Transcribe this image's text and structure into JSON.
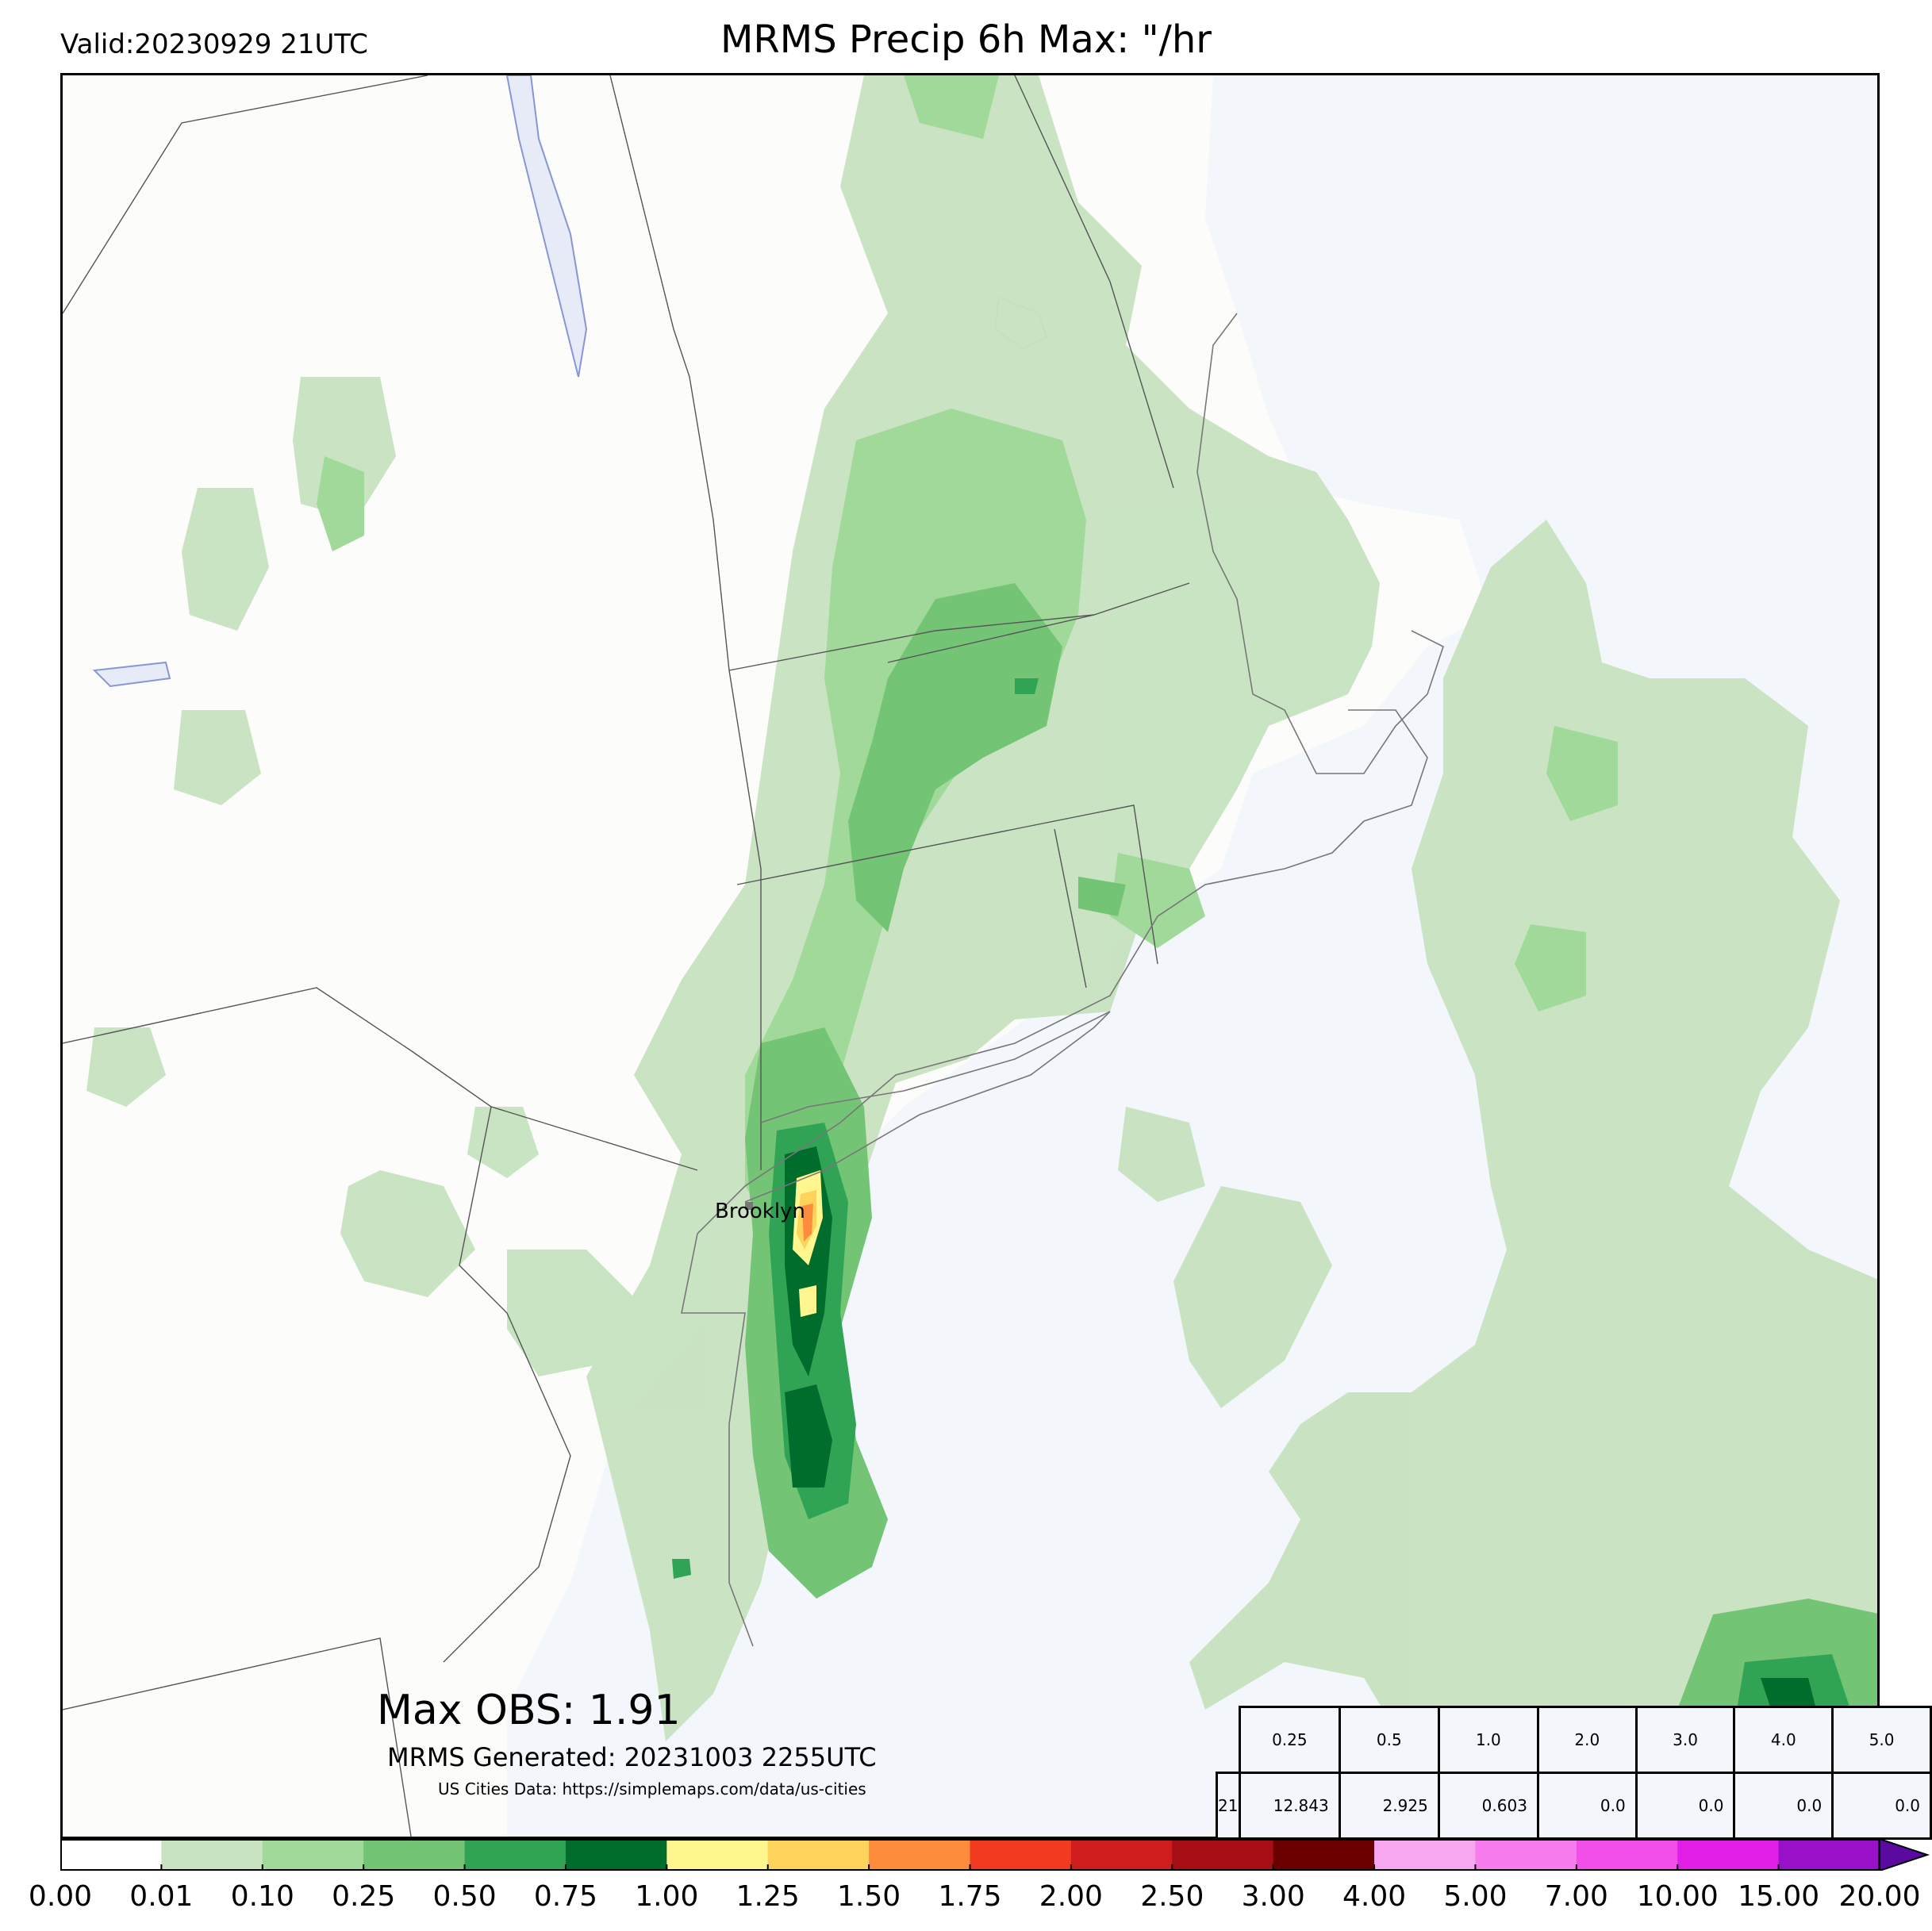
{
  "header": {
    "valid_text": "Valid:20230929 21UTC",
    "title": "MRMS Precip 6h Max: \"/hr"
  },
  "map": {
    "city_label": "Brooklyn",
    "colors": {
      "land": "#fcfcfb",
      "ocean": "#f3f6fb",
      "lake": "#e6ebf7",
      "border": "#555555"
    }
  },
  "annotations": {
    "max_obs": "Max OBS: 1.91",
    "generated": "MRMS Generated: 20231003 2255UTC",
    "source": "US Cities Data: https://simplemaps.com/data/us-cities"
  },
  "stats_table": {
    "row_label": "21",
    "thresholds": [
      "0.25",
      "0.5",
      "1.0",
      "2.0",
      "3.0",
      "4.0",
      "5.0"
    ],
    "values": [
      "12.843",
      "2.925",
      "0.603",
      "0.0",
      "0.0",
      "0.0",
      "0.0"
    ]
  },
  "colorbar": {
    "labels": [
      "0.00",
      "0.01",
      "0.10",
      "0.25",
      "0.50",
      "0.75",
      "1.00",
      "1.25",
      "1.50",
      "1.75",
      "2.00",
      "2.50",
      "3.00",
      "4.00",
      "5.00",
      "7.00",
      "10.00",
      "15.00",
      "20.00"
    ],
    "colors": [
      "#ffffff",
      "#c7e3c0",
      "#a1d99b",
      "#74c476",
      "#31a354",
      "#006d2c",
      "#fff68f",
      "#fdd35c",
      "#fd8d3c",
      "#f03b20",
      "#cf1d1d",
      "#a50f15",
      "#6b0000",
      "#f8a6f0",
      "#f77cee",
      "#f24fe8",
      "#e01ee6",
      "#9810c8"
    ],
    "extend_color": "#5a0aa0"
  }
}
